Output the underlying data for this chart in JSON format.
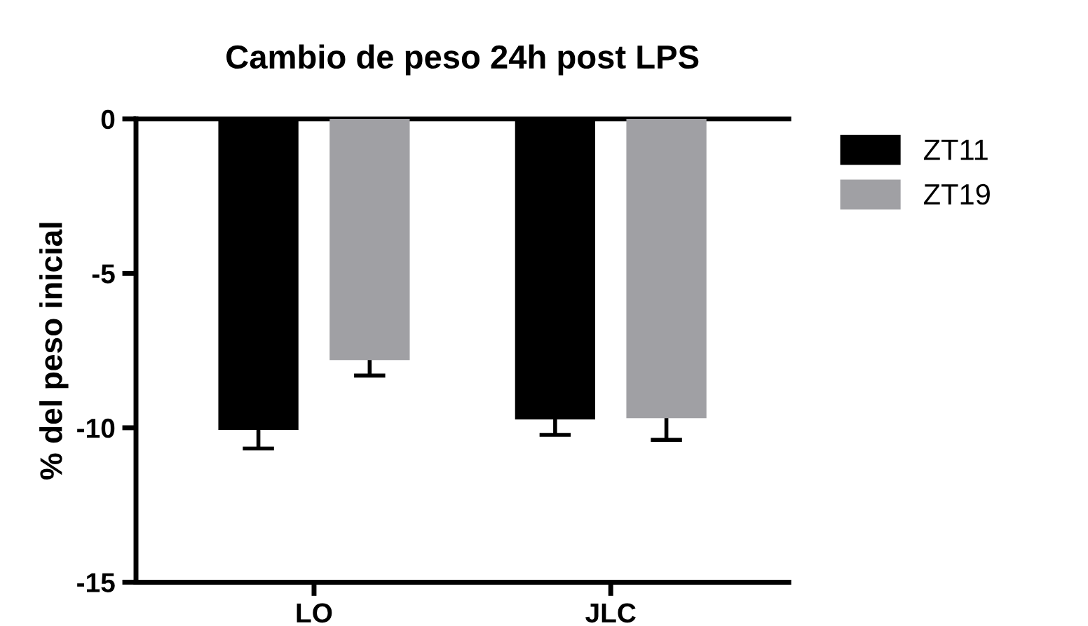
{
  "chart_data": {
    "type": "bar",
    "title": "Cambio de peso 24h post LPS",
    "ylabel": "% del peso inicial",
    "categories": [
      "LO",
      "JLC"
    ],
    "series": [
      {
        "name": "ZT11",
        "color": "#000000",
        "values": [
          -10.07,
          -9.73
        ],
        "errors": [
          0.6,
          0.5
        ]
      },
      {
        "name": "ZT19",
        "color": "#a0a0a4",
        "values": [
          -7.81,
          -9.69
        ],
        "errors": [
          0.5,
          0.7
        ]
      }
    ],
    "ylim": [
      -15,
      0
    ],
    "yticks": [
      -15,
      -10,
      -5,
      0
    ],
    "grid": false,
    "legend": "top right"
  }
}
